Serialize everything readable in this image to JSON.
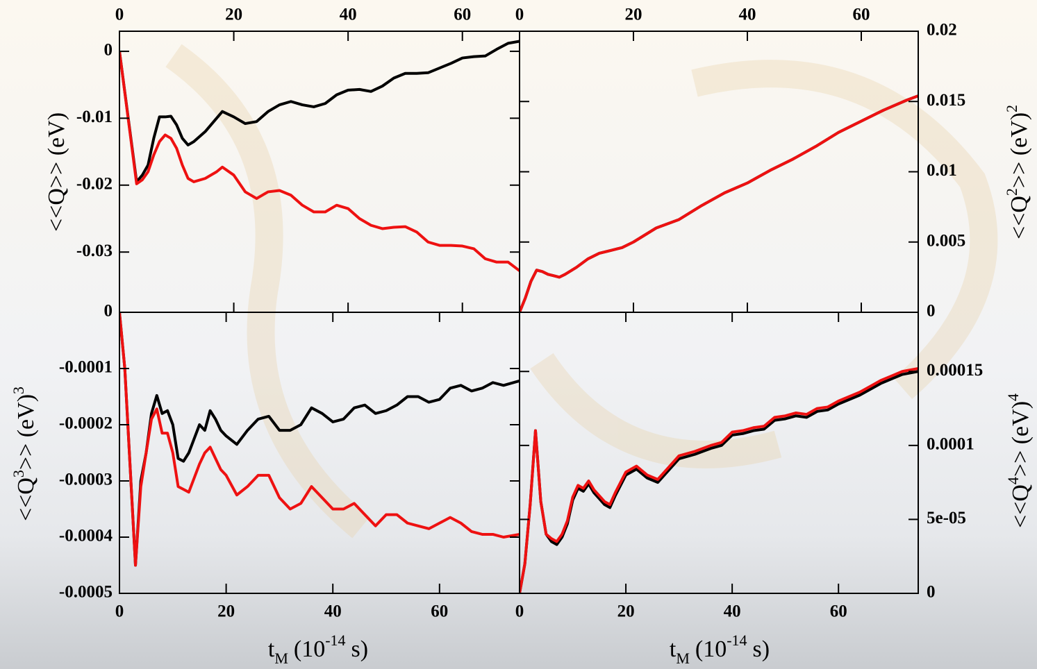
{
  "chart_data": [
    {
      "type": "line",
      "ylabel": [
        "<<Q>> (eV)"
      ],
      "xlim": [
        0,
        70
      ],
      "xticks": [
        0,
        20,
        40,
        60
      ],
      "ylim": [
        -0.039,
        0.003
      ],
      "yticks": [
        0,
        -0.01,
        -0.02,
        -0.03
      ],
      "x": [
        0,
        3,
        4,
        5,
        6,
        7,
        8,
        9,
        10,
        11,
        12,
        13,
        15,
        17,
        18,
        20,
        22,
        24,
        26,
        28,
        30,
        32,
        34,
        36,
        38,
        40,
        42,
        44,
        46,
        48,
        50,
        52,
        54,
        56,
        58,
        60,
        62,
        64,
        66,
        68,
        70
      ],
      "series": [
        {
          "color": "#000000",
          "values": [
            0,
            -0.0195,
            -0.0185,
            -0.017,
            -0.013,
            -0.0098,
            -0.0098,
            -0.0097,
            -0.011,
            -0.013,
            -0.014,
            -0.0135,
            -0.012,
            -0.01,
            -0.009,
            -0.0098,
            -0.0108,
            -0.0105,
            -0.009,
            -0.008,
            -0.0075,
            -0.008,
            -0.0083,
            -0.0078,
            -0.0065,
            -0.0058,
            -0.0057,
            -0.006,
            -0.0052,
            -0.004,
            -0.0033,
            -0.0033,
            -0.0032,
            -0.0025,
            -0.0018,
            -0.001,
            -0.0008,
            -0.0007,
            0.0003,
            0.0012,
            0.0015
          ]
        },
        {
          "color": "#ee1111",
          "values": [
            0,
            -0.0198,
            -0.0192,
            -0.018,
            -0.0155,
            -0.0135,
            -0.0125,
            -0.013,
            -0.0145,
            -0.017,
            -0.019,
            -0.0195,
            -0.019,
            -0.018,
            -0.0173,
            -0.0185,
            -0.021,
            -0.022,
            -0.021,
            -0.0208,
            -0.0215,
            -0.023,
            -0.024,
            -0.024,
            -0.023,
            -0.0235,
            -0.025,
            -0.026,
            -0.0265,
            -0.0263,
            -0.0262,
            -0.027,
            -0.0285,
            -0.029,
            -0.029,
            -0.0291,
            -0.0295,
            -0.031,
            -0.0315,
            -0.0315,
            -0.0328
          ]
        }
      ]
    },
    {
      "type": "line",
      "ylabel": [
        "<<Q",
        "2",
        ">> (eV)",
        "2"
      ],
      "xlim": [
        0,
        70
      ],
      "xticks": [
        0,
        20,
        40,
        60
      ],
      "ylim": [
        0,
        0.02
      ],
      "yticks": [
        0,
        0.005,
        0.01,
        0.015,
        0.02
      ],
      "x": [
        0,
        1,
        2,
        3,
        4,
        5,
        6,
        7,
        8,
        10,
        12,
        14,
        16,
        18,
        20,
        24,
        28,
        32,
        36,
        40,
        44,
        48,
        52,
        56,
        60,
        64,
        68,
        70
      ],
      "series": [
        {
          "color": "#000000",
          "values": [
            0,
            0.001,
            0.0022,
            0.003,
            0.0029,
            0.0027,
            0.0026,
            0.0025,
            0.0027,
            0.0032,
            0.0038,
            0.0042,
            0.0044,
            0.0046,
            0.005,
            0.006,
            0.0066,
            0.0076,
            0.0085,
            0.0092,
            0.0101,
            0.0109,
            0.0118,
            0.0128,
            0.0136,
            0.0144,
            0.0151,
            0.0154
          ]
        },
        {
          "color": "#ee1111",
          "values": [
            0,
            0.001,
            0.0022,
            0.003,
            0.0029,
            0.0027,
            0.0026,
            0.0025,
            0.0027,
            0.0032,
            0.0038,
            0.0042,
            0.0044,
            0.0046,
            0.005,
            0.006,
            0.0066,
            0.0076,
            0.0085,
            0.0092,
            0.0101,
            0.0109,
            0.0118,
            0.0128,
            0.0136,
            0.0144,
            0.0151,
            0.0154
          ]
        }
      ]
    },
    {
      "type": "line",
      "ylabel": [
        "<<Q",
        "3",
        ">> (eV)",
        "3"
      ],
      "xlabel": [
        "t",
        "M",
        "(10",
        "-14",
        "s)"
      ],
      "xlim": [
        0,
        75
      ],
      "xticks": [
        0,
        20,
        40,
        60
      ],
      "ylim": [
        -0.0005,
        0
      ],
      "yticks": [
        0,
        -0.0001,
        -0.0002,
        -0.0003,
        -0.0004,
        -0.0005
      ],
      "x": [
        0,
        1,
        3,
        4,
        5,
        6,
        7,
        8,
        9,
        10,
        11,
        12,
        13,
        15,
        16,
        17,
        18,
        19,
        20,
        22,
        24,
        26,
        28,
        30,
        32,
        34,
        36,
        38,
        40,
        42,
        44,
        46,
        48,
        50,
        52,
        54,
        56,
        58,
        60,
        62,
        64,
        66,
        68,
        70,
        72,
        75
      ],
      "series": [
        {
          "color": "#000000",
          "values": [
            0,
            -0.0001,
            -0.00045,
            -0.0003,
            -0.00025,
            -0.00018,
            -0.000148,
            -0.00018,
            -0.000175,
            -0.0002,
            -0.00026,
            -0.000265,
            -0.00025,
            -0.0002,
            -0.00021,
            -0.000175,
            -0.00019,
            -0.00021,
            -0.00022,
            -0.000235,
            -0.00021,
            -0.00019,
            -0.000185,
            -0.00021,
            -0.00021,
            -0.0002,
            -0.00017,
            -0.00018,
            -0.000195,
            -0.00019,
            -0.00017,
            -0.000165,
            -0.00018,
            -0.000175,
            -0.000165,
            -0.00015,
            -0.00015,
            -0.00016,
            -0.000155,
            -0.000135,
            -0.00013,
            -0.00014,
            -0.000135,
            -0.000125,
            -0.00013,
            -0.000122
          ]
        },
        {
          "color": "#ee1111",
          "values": [
            0,
            -0.0001,
            -0.00045,
            -0.00031,
            -0.00025,
            -0.00019,
            -0.000172,
            -0.000215,
            -0.000215,
            -0.00025,
            -0.00031,
            -0.000315,
            -0.00032,
            -0.00027,
            -0.00025,
            -0.00024,
            -0.00026,
            -0.00028,
            -0.00029,
            -0.000325,
            -0.00031,
            -0.00029,
            -0.00029,
            -0.00033,
            -0.00035,
            -0.00034,
            -0.00031,
            -0.00033,
            -0.00035,
            -0.00035,
            -0.00034,
            -0.00036,
            -0.00038,
            -0.00036,
            -0.00036,
            -0.000375,
            -0.00038,
            -0.000385,
            -0.000375,
            -0.000365,
            -0.000375,
            -0.00039,
            -0.000395,
            -0.000395,
            -0.0004,
            -0.000395
          ]
        }
      ]
    },
    {
      "type": "line",
      "ylabel": [
        "<<Q",
        "4",
        ">> (eV)",
        "4"
      ],
      "xlabel": [
        "t",
        "M",
        "(10",
        "-14",
        "s)"
      ],
      "xlim": [
        0,
        75
      ],
      "xticks": [
        0,
        20,
        40,
        60
      ],
      "ylim": [
        0,
        0.00019
      ],
      "yticks": [
        0,
        {
          "value": 5e-05,
          "label": "5e-05"
        },
        0.0001,
        0.00015
      ],
      "x": [
        0,
        1,
        2,
        3,
        4,
        5,
        6,
        7,
        8,
        9,
        10,
        11,
        12,
        13,
        14,
        15,
        16,
        17,
        18,
        20,
        22,
        24,
        26,
        28,
        30,
        33,
        36,
        38,
        40,
        42,
        44,
        46,
        48,
        50,
        52,
        54,
        56,
        58,
        60,
        62,
        64,
        66,
        68,
        70,
        72,
        75
      ],
      "series": [
        {
          "color": "#000000",
          "values": [
            0,
            2e-05,
            6e-05,
            0.00011,
            6.2e-05,
            4e-05,
            3.5e-05,
            3.3e-05,
            3.8e-05,
            4.7e-05,
            6.3e-05,
            7.1e-05,
            6.9e-05,
            7.4e-05,
            6.8e-05,
            6.4e-05,
            6e-05,
            5.8e-05,
            6.6e-05,
            8e-05,
            8.4e-05,
            7.8e-05,
            7.5e-05,
            8.3e-05,
            9.1e-05,
            9.4e-05,
            9.8e-05,
            0.0001,
            0.000107,
            0.000108,
            0.00011,
            0.000111,
            0.000117,
            0.000118,
            0.00012,
            0.000119,
            0.000123,
            0.000124,
            0.000128,
            0.000131,
            0.000134,
            0.000138,
            0.000142,
            0.000145,
            0.000148,
            0.00015
          ]
        },
        {
          "color": "#ee1111",
          "values": [
            0,
            2e-05,
            6e-05,
            0.00011,
            6.2e-05,
            4e-05,
            3.7e-05,
            3.5e-05,
            4e-05,
            4.9e-05,
            6.5e-05,
            7.3e-05,
            7.1e-05,
            7.6e-05,
            7e-05,
            6.6e-05,
            6.2e-05,
            6e-05,
            6.8e-05,
            8.2e-05,
            8.6e-05,
            8e-05,
            7.7e-05,
            8.5e-05,
            9.3e-05,
            9.6e-05,
            0.0001,
            0.000102,
            0.000109,
            0.00011,
            0.000112,
            0.000113,
            0.000119,
            0.00012,
            0.000122,
            0.000121,
            0.000125,
            0.000126,
            0.00013,
            0.000133,
            0.000136,
            0.00014,
            0.000144,
            0.000147,
            0.00015,
            0.000152
          ]
        }
      ]
    }
  ]
}
